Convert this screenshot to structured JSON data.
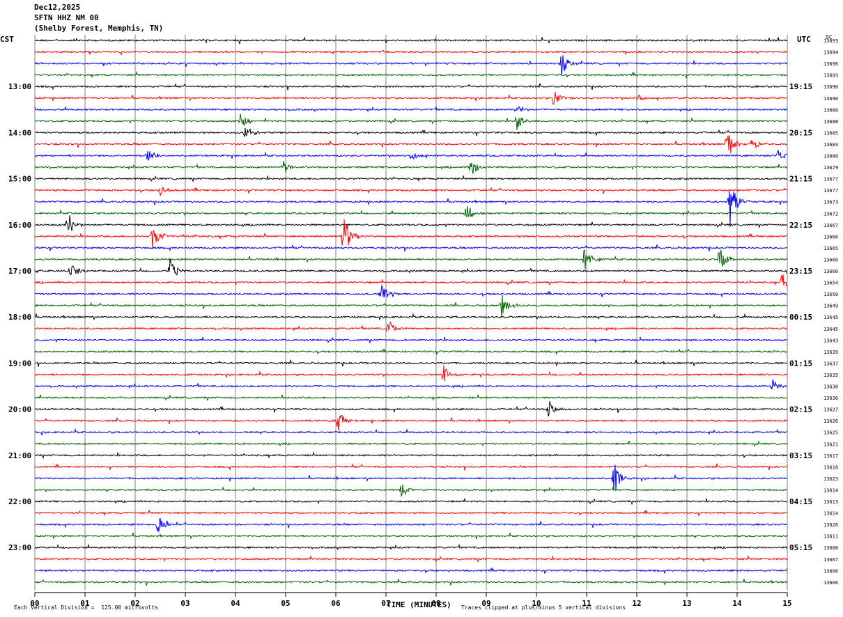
{
  "header": {
    "date": "Dec12,2025",
    "station": "SFTN HHZ NM 00",
    "location": "(Shelby Forest, Memphis, TN)"
  },
  "left_tz": "CST",
  "right_tz": "UTC",
  "dc_label": "DC",
  "footer": {
    "vertical_division": "Each Vertical Division =  125.00 microvolts",
    "clip_note": "Traces clipped at plus/minus 5 vertical divisions",
    "x_title": "TIME (MINUTES)"
  },
  "colors": {
    "trace_cycle": [
      "#000000",
      "#ff0000",
      "#0000ff",
      "#006400"
    ],
    "grid": "#808080",
    "background": "#ffffff"
  },
  "chart_data": {
    "type": "line",
    "title": "SFTN HHZ NM 00",
    "xlabel": "TIME (MINUTES)",
    "x_ticks": [
      "00",
      "01",
      "02",
      "03",
      "04",
      "05",
      "06",
      "07",
      "08",
      "09",
      "10",
      "11",
      "12",
      "13",
      "14",
      "15"
    ],
    "xlim": [
      0,
      15
    ],
    "trace_interval_minutes": 15,
    "trace_count": 48,
    "left_hour_labels": [
      {
        "trace": 4,
        "label": "13:00"
      },
      {
        "trace": 8,
        "label": "14:00"
      },
      {
        "trace": 12,
        "label": "15:00"
      },
      {
        "trace": 16,
        "label": "16:00"
      },
      {
        "trace": 20,
        "label": "17:00"
      },
      {
        "trace": 24,
        "label": "18:00"
      },
      {
        "trace": 28,
        "label": "19:00"
      },
      {
        "trace": 32,
        "label": "20:00"
      },
      {
        "trace": 36,
        "label": "21:00"
      },
      {
        "trace": 40,
        "label": "22:00"
      },
      {
        "trace": 44,
        "label": "23:00"
      }
    ],
    "right_hour_labels": [
      {
        "trace": 4,
        "label": "19:15"
      },
      {
        "trace": 8,
        "label": "20:15"
      },
      {
        "trace": 12,
        "label": "21:15"
      },
      {
        "trace": 16,
        "label": "22:15"
      },
      {
        "trace": 20,
        "label": "23:15"
      },
      {
        "trace": 24,
        "label": "00:15"
      },
      {
        "trace": 28,
        "label": "01:15"
      },
      {
        "trace": 32,
        "label": "02:15"
      },
      {
        "trace": 36,
        "label": "03:15"
      },
      {
        "trace": 40,
        "label": "04:15"
      },
      {
        "trace": 44,
        "label": "05:15"
      }
    ],
    "dc_offsets": [
      "13693",
      "13694",
      "13696",
      "13693",
      "13690",
      "13690",
      "13680",
      "13688",
      "13685",
      "13683",
      "13680",
      "13679",
      "13677",
      "13677",
      "13673",
      "13672",
      "13667",
      "13666",
      "13665",
      "13660",
      "13660",
      "13654",
      "13650",
      "13649",
      "13645",
      "13645",
      "13643",
      "13639",
      "13637",
      "13635",
      "13630",
      "13630",
      "13627",
      "13626",
      "13625",
      "13621",
      "13617",
      "13616",
      "13623",
      "13614",
      "13613",
      "13614",
      "13626",
      "13611",
      "13608",
      "13607",
      "13606",
      "13606"
    ],
    "events": [
      {
        "trace": 2,
        "minute": 10.5,
        "amp": 2.0
      },
      {
        "trace": 5,
        "minute": 10.35,
        "amp": 1.6
      },
      {
        "trace": 5,
        "minute": 12.05,
        "amp": 1.0
      },
      {
        "trace": 6,
        "minute": 9.6,
        "amp": 0.9
      },
      {
        "trace": 7,
        "minute": 9.6,
        "amp": 1.6
      },
      {
        "trace": 7,
        "minute": 4.1,
        "amp": 1.3
      },
      {
        "trace": 8,
        "minute": 4.2,
        "amp": 1.2
      },
      {
        "trace": 9,
        "minute": 13.8,
        "amp": 2.5
      },
      {
        "trace": 9,
        "minute": 14.3,
        "amp": 1.1
      },
      {
        "trace": 10,
        "minute": 2.25,
        "amp": 1.5
      },
      {
        "trace": 10,
        "minute": 7.5,
        "amp": 1.3
      },
      {
        "trace": 10,
        "minute": 14.8,
        "amp": 1.5
      },
      {
        "trace": 11,
        "minute": 4.95,
        "amp": 1.3
      },
      {
        "trace": 11,
        "minute": 8.7,
        "amp": 1.6
      },
      {
        "trace": 13,
        "minute": 2.5,
        "amp": 1.0
      },
      {
        "trace": 14,
        "minute": 13.85,
        "amp": 5.0
      },
      {
        "trace": 15,
        "minute": 8.6,
        "amp": 1.5
      },
      {
        "trace": 16,
        "minute": 0.65,
        "amp": 2.5
      },
      {
        "trace": 17,
        "minute": 2.35,
        "amp": 2.5
      },
      {
        "trace": 17,
        "minute": 6.15,
        "amp": 4.0
      },
      {
        "trace": 19,
        "minute": 10.95,
        "amp": 2.5
      },
      {
        "trace": 19,
        "minute": 13.65,
        "amp": 2.0
      },
      {
        "trace": 20,
        "minute": 0.7,
        "amp": 1.5
      },
      {
        "trace": 20,
        "minute": 2.7,
        "amp": 2.0
      },
      {
        "trace": 21,
        "minute": 14.9,
        "amp": 1.6
      },
      {
        "trace": 22,
        "minute": 6.9,
        "amp": 1.8
      },
      {
        "trace": 23,
        "minute": 9.3,
        "amp": 2.0
      },
      {
        "trace": 25,
        "minute": 7.05,
        "amp": 1.6
      },
      {
        "trace": 29,
        "minute": 8.15,
        "amp": 1.6
      },
      {
        "trace": 30,
        "minute": 14.7,
        "amp": 1.2
      },
      {
        "trace": 32,
        "minute": 10.25,
        "amp": 1.6
      },
      {
        "trace": 33,
        "minute": 6.05,
        "amp": 1.8
      },
      {
        "trace": 38,
        "minute": 11.55,
        "amp": 2.5
      },
      {
        "trace": 39,
        "minute": 7.3,
        "amp": 1.4
      },
      {
        "trace": 42,
        "minute": 2.45,
        "amp": 2.0
      }
    ]
  }
}
